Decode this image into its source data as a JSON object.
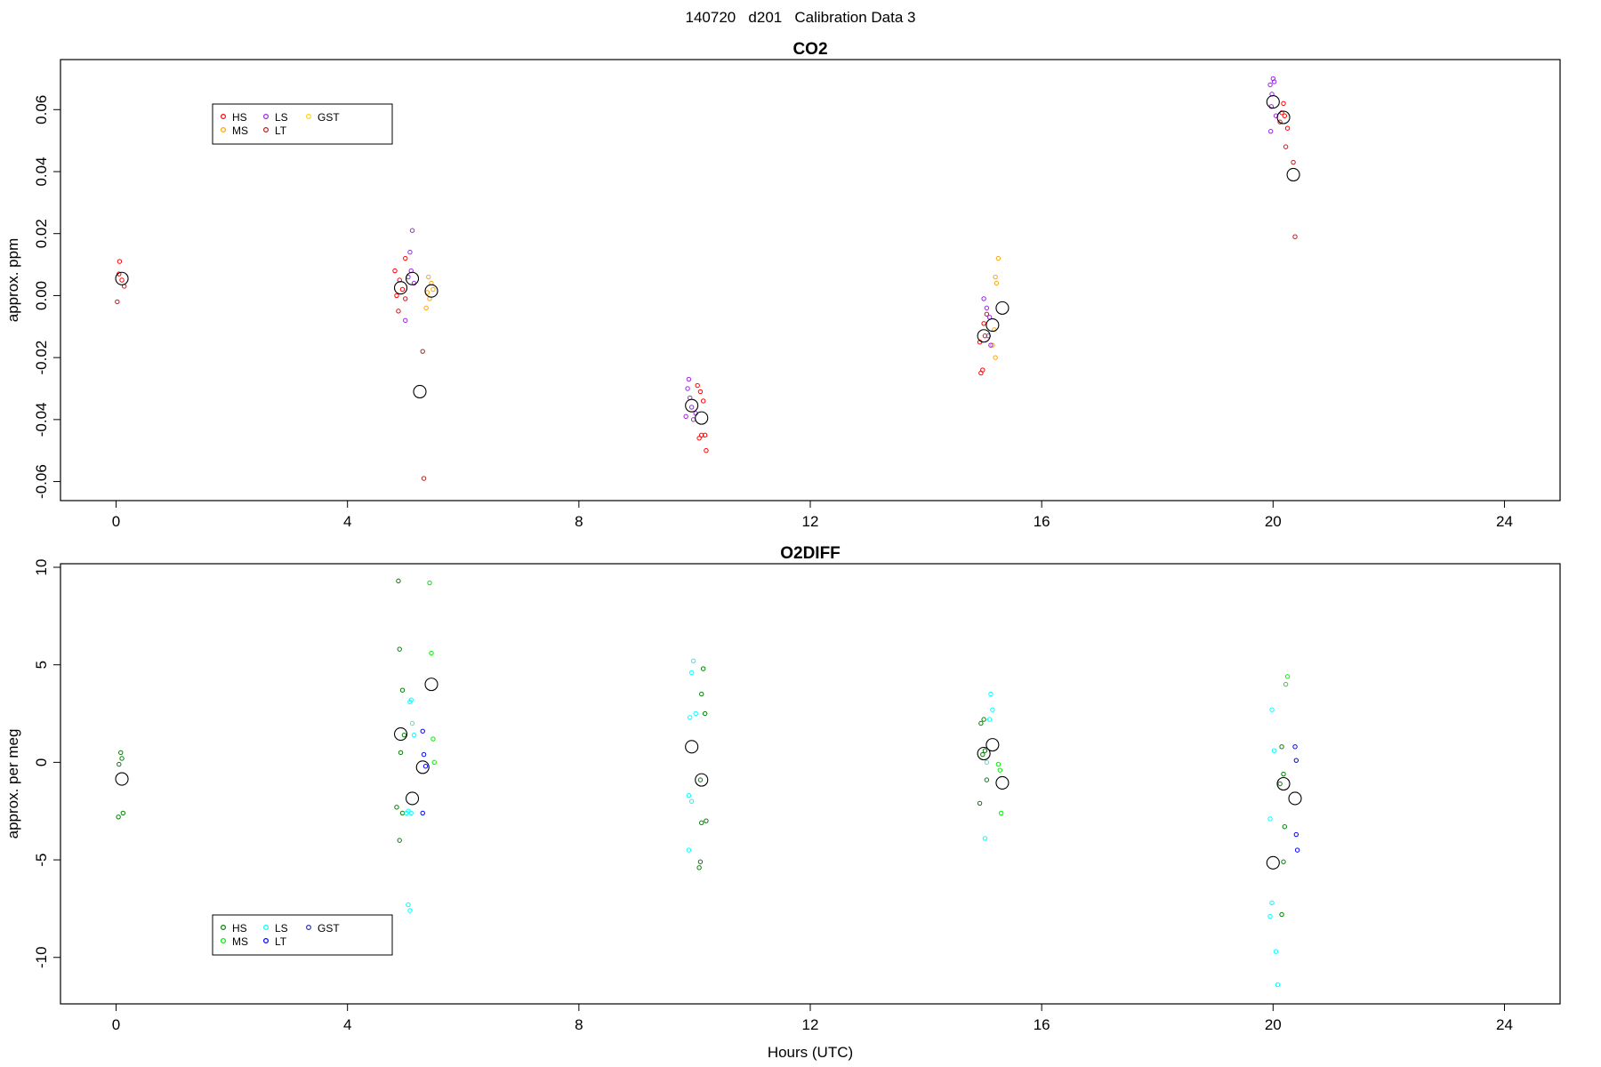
{
  "figure_title": "140720   d201   Calibration Data 3",
  "colors": {
    "HS_co2": "#ff0000",
    "MS_co2": "#ffa500",
    "LS_co2": "#a020f0",
    "LT_co2": "#b22222",
    "GST_co2": "#ffd700",
    "HS_o2": "#008000",
    "MS_o2": "#00ee00",
    "LS_o2": "#00ffff",
    "LT_o2": "#0000ff",
    "GST_o2": "#3030c0",
    "mean": "#000000",
    "frame": "#000000"
  },
  "chart_data": [
    {
      "type": "scatter",
      "title": "CO2",
      "xlabel": "",
      "ylabel": "approx. ppm",
      "xlim": [
        -0.9,
        24.9
      ],
      "ylim": [
        -0.065,
        0.075
      ],
      "xticks": [
        0,
        4,
        8,
        12,
        16,
        20,
        24
      ],
      "yticks": [
        -0.06,
        -0.04,
        -0.02,
        0.0,
        0.02,
        0.04,
        0.06
      ],
      "ytick_labels": [
        "-0.06",
        "-0.04",
        "-0.02",
        "0.00",
        "0.02",
        "0.04",
        "0.06"
      ],
      "legend_position": "top-left",
      "legend": [
        {
          "name": "HS",
          "color_key": "HS_co2"
        },
        {
          "name": "MS",
          "color_key": "MS_co2"
        },
        {
          "name": "LS",
          "color_key": "LS_co2"
        },
        {
          "name": "LT",
          "color_key": "LT_co2"
        },
        {
          "name": "GST",
          "color_key": "GST_co2"
        }
      ],
      "series": [
        {
          "name": "HS",
          "color_key": "HS_co2",
          "points": [
            [
              0.02,
              -0.002
            ],
            [
              0.06,
              0.011
            ],
            [
              0.1,
              0.005
            ],
            [
              0.14,
              0.003
            ],
            [
              0.05,
              0.007
            ],
            [
              4.82,
              0.008
            ],
            [
              4.9,
              0.005
            ],
            [
              4.95,
              0.002
            ],
            [
              5.0,
              -0.001
            ],
            [
              4.88,
              -0.005
            ],
            [
              5.0,
              0.012
            ],
            [
              4.85,
              0.0
            ],
            [
              10.1,
              -0.031
            ],
            [
              10.05,
              -0.029
            ],
            [
              10.15,
              -0.034
            ],
            [
              10.18,
              -0.045
            ],
            [
              10.12,
              -0.045
            ],
            [
              10.2,
              -0.05
            ],
            [
              10.08,
              -0.046
            ],
            [
              14.95,
              -0.025
            ],
            [
              14.98,
              -0.024
            ],
            [
              15.0,
              -0.009
            ],
            [
              15.02,
              -0.013
            ],
            [
              14.93,
              -0.015
            ],
            [
              15.05,
              -0.006
            ],
            [
              20.15,
              0.059
            ],
            [
              20.2,
              0.058
            ],
            [
              20.25,
              0.054
            ],
            [
              20.22,
              0.048
            ],
            [
              20.18,
              0.062
            ],
            [
              20.12,
              0.056
            ]
          ]
        },
        {
          "name": "MS",
          "color_key": "MS_co2",
          "points": [
            [
              5.4,
              0.006
            ],
            [
              5.45,
              0.004
            ],
            [
              5.38,
              0.001
            ],
            [
              5.42,
              -0.001
            ],
            [
              5.36,
              -0.004
            ],
            [
              5.48,
              0.002
            ],
            [
              15.25,
              0.012
            ],
            [
              15.2,
              0.006
            ],
            [
              15.22,
              0.004
            ],
            [
              15.18,
              -0.011
            ],
            [
              15.15,
              -0.016
            ],
            [
              15.2,
              -0.02
            ]
          ]
        },
        {
          "name": "LS",
          "color_key": "LS_co2",
          "points": [
            [
              5.05,
              0.006
            ],
            [
              5.1,
              0.008
            ],
            [
              5.12,
              0.021
            ],
            [
              5.08,
              0.014
            ],
            [
              5.0,
              -0.008
            ],
            [
              5.15,
              0.004
            ],
            [
              9.9,
              -0.027
            ],
            [
              9.88,
              -0.03
            ],
            [
              9.92,
              -0.033
            ],
            [
              9.95,
              -0.036
            ],
            [
              9.85,
              -0.039
            ],
            [
              9.98,
              -0.04
            ],
            [
              10.02,
              -0.038
            ],
            [
              15.05,
              -0.004
            ],
            [
              15.1,
              -0.007
            ],
            [
              15.08,
              -0.013
            ],
            [
              15.12,
              -0.016
            ],
            [
              15.0,
              -0.001
            ],
            [
              19.95,
              0.068
            ],
            [
              20.0,
              0.07
            ],
            [
              20.02,
              0.069
            ],
            [
              19.98,
              0.065
            ],
            [
              19.97,
              0.061
            ],
            [
              20.05,
              0.058
            ],
            [
              19.96,
              0.053
            ]
          ]
        },
        {
          "name": "LT",
          "color_key": "LT_co2",
          "points": [
            [
              5.3,
              -0.018
            ],
            [
              5.32,
              -0.059
            ],
            [
              20.35,
              0.043
            ],
            [
              20.38,
              0.019
            ]
          ]
        },
        {
          "name": "GST",
          "color_key": "GST_co2",
          "points": []
        },
        {
          "name": "",
          "role": "mean",
          "color_key": "mean",
          "points": [
            [
              0.1,
              0.0055
            ],
            [
              4.92,
              0.0025
            ],
            [
              5.12,
              0.0055
            ],
            [
              5.25,
              -0.031
            ],
            [
              5.45,
              0.0015
            ],
            [
              9.95,
              -0.0355
            ],
            [
              10.12,
              -0.0395
            ],
            [
              15.0,
              -0.013
            ],
            [
              15.15,
              -0.0095
            ],
            [
              15.32,
              -0.004
            ],
            [
              20.0,
              0.0625
            ],
            [
              20.18,
              0.0575
            ],
            [
              20.35,
              0.039
            ]
          ]
        }
      ]
    },
    {
      "type": "scatter",
      "title": "O2DIFF",
      "xlabel": "Hours (UTC)",
      "ylabel": "approx. per meg",
      "xlim": [
        -0.9,
        24.9
      ],
      "ylim": [
        -12.2,
        10.0
      ],
      "xticks": [
        0,
        4,
        8,
        12,
        16,
        20,
        24
      ],
      "yticks": [
        -10,
        -5,
        0,
        5,
        10
      ],
      "ytick_labels": [
        "-10",
        "-5",
        "0",
        "5",
        "10"
      ],
      "legend_position": "bottom-left",
      "legend": [
        {
          "name": "HS",
          "color_key": "HS_o2"
        },
        {
          "name": "MS",
          "color_key": "MS_o2"
        },
        {
          "name": "LS",
          "color_key": "LS_o2"
        },
        {
          "name": "LT",
          "color_key": "LT_o2"
        },
        {
          "name": "GST",
          "color_key": "GST_o2"
        }
      ],
      "series": [
        {
          "name": "HS",
          "color_key": "HS_o2",
          "points": [
            [
              0.08,
              0.5
            ],
            [
              0.1,
              0.2
            ],
            [
              0.05,
              -0.1
            ],
            [
              0.12,
              -2.6
            ],
            [
              0.04,
              -2.8
            ],
            [
              4.88,
              9.3
            ],
            [
              4.9,
              5.8
            ],
            [
              4.95,
              3.7
            ],
            [
              4.98,
              1.4
            ],
            [
              4.92,
              0.5
            ],
            [
              4.85,
              -2.3
            ],
            [
              4.95,
              -2.6
            ],
            [
              4.9,
              -4.0
            ],
            [
              10.15,
              4.8
            ],
            [
              10.12,
              3.5
            ],
            [
              10.18,
              2.5
            ],
            [
              10.1,
              -0.9
            ],
            [
              10.2,
              -3.0
            ],
            [
              10.12,
              -3.1
            ],
            [
              10.1,
              -5.1
            ],
            [
              10.08,
              -5.4
            ],
            [
              14.95,
              2.0
            ],
            [
              15.0,
              2.2
            ],
            [
              15.02,
              0.6
            ],
            [
              14.98,
              0.4
            ],
            [
              15.05,
              -0.9
            ],
            [
              14.93,
              -2.1
            ],
            [
              20.15,
              0.8
            ],
            [
              20.18,
              -0.6
            ],
            [
              20.12,
              -1.1
            ],
            [
              20.2,
              -3.3
            ],
            [
              20.18,
              -5.1
            ],
            [
              20.15,
              -7.8
            ]
          ]
        },
        {
          "name": "MS",
          "color_key": "MS_o2",
          "points": [
            [
              5.42,
              9.2
            ],
            [
              5.45,
              5.6
            ],
            [
              5.48,
              1.2
            ],
            [
              5.5,
              0.0
            ],
            [
              15.25,
              -0.1
            ],
            [
              15.28,
              -0.4
            ],
            [
              15.3,
              -2.6
            ],
            [
              20.25,
              4.4
            ],
            [
              20.22,
              4.0
            ]
          ]
        },
        {
          "name": "LS",
          "color_key": "LS_o2",
          "points": [
            [
              5.08,
              3.1
            ],
            [
              5.1,
              3.2
            ],
            [
              5.12,
              2.0
            ],
            [
              5.15,
              1.4
            ],
            [
              5.02,
              -2.6
            ],
            [
              5.05,
              -2.5
            ],
            [
              5.1,
              -2.6
            ],
            [
              5.05,
              -7.3
            ],
            [
              5.08,
              -7.6
            ],
            [
              9.98,
              5.2
            ],
            [
              9.95,
              4.6
            ],
            [
              9.92,
              2.3
            ],
            [
              10.02,
              2.5
            ],
            [
              9.9,
              -1.7
            ],
            [
              9.95,
              -2.0
            ],
            [
              9.9,
              -4.5
            ],
            [
              15.12,
              3.5
            ],
            [
              15.15,
              2.7
            ],
            [
              15.1,
              2.2
            ],
            [
              15.05,
              0.0
            ],
            [
              15.02,
              -3.9
            ],
            [
              19.98,
              2.7
            ],
            [
              20.02,
              0.6
            ],
            [
              19.95,
              -2.9
            ],
            [
              19.98,
              -7.2
            ],
            [
              19.95,
              -7.9
            ],
            [
              20.05,
              -9.7
            ],
            [
              20.08,
              -11.4
            ]
          ]
        },
        {
          "name": "LT",
          "color_key": "LT_o2",
          "points": [
            [
              5.3,
              1.6
            ],
            [
              5.32,
              0.4
            ],
            [
              5.35,
              -0.2
            ],
            [
              5.3,
              -2.6
            ],
            [
              20.38,
              0.8
            ],
            [
              20.4,
              0.1
            ],
            [
              20.4,
              -3.7
            ],
            [
              20.42,
              -4.5
            ]
          ]
        },
        {
          "name": "GST",
          "color_key": "GST_o2",
          "points": []
        },
        {
          "name": "",
          "role": "mean",
          "color_key": "mean",
          "points": [
            [
              0.1,
              -0.85
            ],
            [
              4.92,
              1.45
            ],
            [
              5.12,
              -1.85
            ],
            [
              5.3,
              -0.25
            ],
            [
              5.45,
              4.0
            ],
            [
              9.95,
              0.8
            ],
            [
              10.12,
              -0.9
            ],
            [
              15.0,
              0.45
            ],
            [
              15.15,
              0.9
            ],
            [
              15.32,
              -1.05
            ],
            [
              20.0,
              -5.15
            ],
            [
              20.18,
              -1.1
            ],
            [
              20.38,
              -1.85
            ]
          ]
        }
      ]
    }
  ]
}
